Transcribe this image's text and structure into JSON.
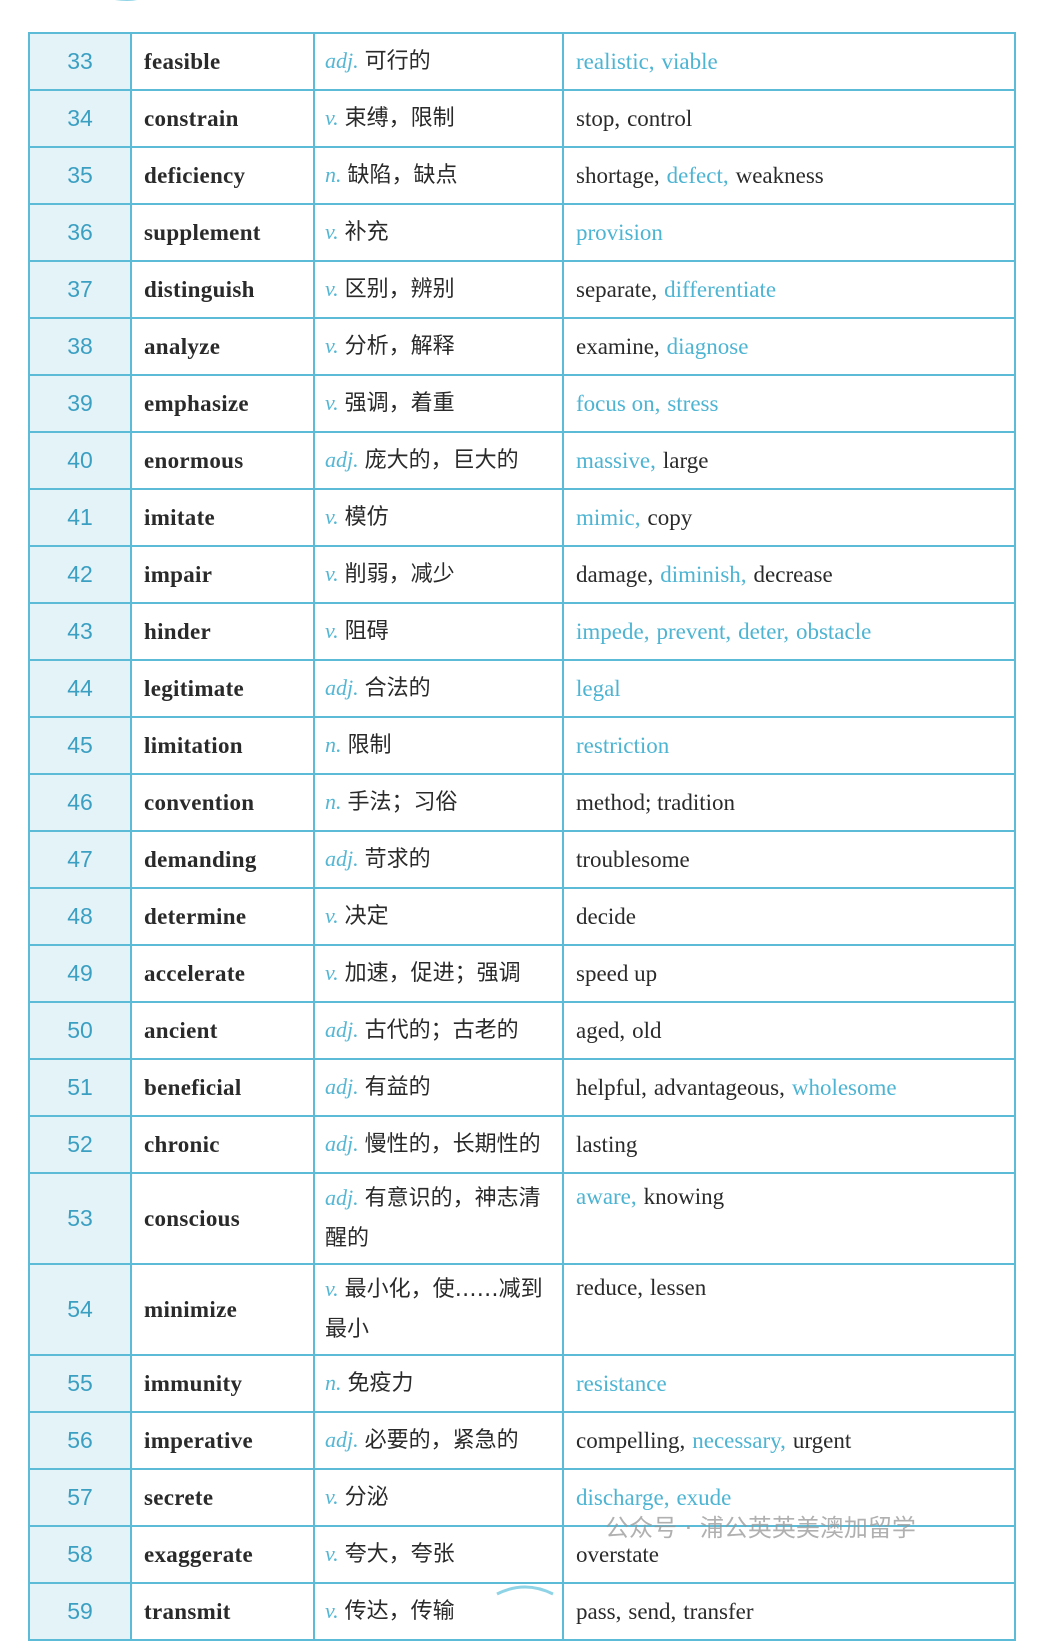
{
  "table": {
    "rows": [
      {
        "no": 33,
        "word": "feasible",
        "pos": "adj.",
        "meaning": "可行的",
        "synonyms": [
          {
            "text": "realistic,",
            "blue": true
          },
          {
            "text": "viable",
            "blue": true
          }
        ]
      },
      {
        "no": 34,
        "word": "constrain",
        "pos": "v.",
        "meaning": "束缚，限制",
        "synonyms": [
          {
            "text": "stop,",
            "blue": false
          },
          {
            "text": "control",
            "blue": false
          }
        ]
      },
      {
        "no": 35,
        "word": "deficiency",
        "pos": "n.",
        "meaning": "缺陷，缺点",
        "synonyms": [
          {
            "text": "shortage,",
            "blue": false
          },
          {
            "text": "defect,",
            "blue": true
          },
          {
            "text": "weakness",
            "blue": false
          }
        ]
      },
      {
        "no": 36,
        "word": "supplement",
        "pos": "v.",
        "meaning": "补充",
        "synonyms": [
          {
            "text": "provision",
            "blue": true
          }
        ]
      },
      {
        "no": 37,
        "word": "distinguish",
        "pos": "v.",
        "meaning": "区别，辨别",
        "synonyms": [
          {
            "text": "separate,",
            "blue": false
          },
          {
            "text": "differentiate",
            "blue": true
          }
        ]
      },
      {
        "no": 38,
        "word": "analyze",
        "pos": "v.",
        "meaning": "分析，解释",
        "synonyms": [
          {
            "text": "examine,",
            "blue": false
          },
          {
            "text": "diagnose",
            "blue": true
          }
        ]
      },
      {
        "no": 39,
        "word": "emphasize",
        "pos": "v.",
        "meaning": "强调，着重",
        "synonyms": [
          {
            "text": "focus on,",
            "blue": true
          },
          {
            "text": "stress",
            "blue": true
          }
        ]
      },
      {
        "no": 40,
        "word": "enormous",
        "pos": "adj.",
        "meaning": "庞大的，巨大的",
        "synonyms": [
          {
            "text": "massive,",
            "blue": true
          },
          {
            "text": "large",
            "blue": false
          }
        ]
      },
      {
        "no": 41,
        "word": "imitate",
        "pos": "v.",
        "meaning": "模仿",
        "synonyms": [
          {
            "text": "mimic,",
            "blue": true
          },
          {
            "text": "copy",
            "blue": false
          }
        ]
      },
      {
        "no": 42,
        "word": "impair",
        "pos": "v.",
        "meaning": "削弱，减少",
        "synonyms": [
          {
            "text": "damage,",
            "blue": false
          },
          {
            "text": "diminish,",
            "blue": true
          },
          {
            "text": "decrease",
            "blue": false
          }
        ]
      },
      {
        "no": 43,
        "word": "hinder",
        "pos": "v.",
        "meaning": "阻碍",
        "synonyms": [
          {
            "text": "impede,",
            "blue": true
          },
          {
            "text": "prevent,",
            "blue": true
          },
          {
            "text": "deter,",
            "blue": true
          },
          {
            "text": "obstacle",
            "blue": true
          }
        ]
      },
      {
        "no": 44,
        "word": "legitimate",
        "pos": "adj.",
        "meaning": "合法的",
        "synonyms": [
          {
            "text": "legal",
            "blue": true
          }
        ]
      },
      {
        "no": 45,
        "word": "limitation",
        "pos": "n.",
        "meaning": "限制",
        "synonyms": [
          {
            "text": "restriction",
            "blue": true
          }
        ]
      },
      {
        "no": 46,
        "word": "convention",
        "pos": "n.",
        "meaning": "手法；习俗",
        "synonyms": [
          {
            "text": "method; tradition",
            "blue": false
          }
        ]
      },
      {
        "no": 47,
        "word": "demanding",
        "pos": "adj.",
        "meaning": "苛求的",
        "synonyms": [
          {
            "text": "troublesome",
            "blue": false
          }
        ]
      },
      {
        "no": 48,
        "word": "determine",
        "pos": "v.",
        "meaning": "决定",
        "synonyms": [
          {
            "text": "decide",
            "blue": false
          }
        ]
      },
      {
        "no": 49,
        "word": "accelerate",
        "pos": "v.",
        "meaning": "加速，促进；强调",
        "synonyms": [
          {
            "text": "speed up",
            "blue": false
          }
        ]
      },
      {
        "no": 50,
        "word": "ancient",
        "pos": "adj.",
        "meaning": "古代的；古老的",
        "synonyms": [
          {
            "text": "aged,",
            "blue": false
          },
          {
            "text": "old",
            "blue": false
          }
        ]
      },
      {
        "no": 51,
        "word": "beneficial",
        "pos": "adj.",
        "meaning": "有益的",
        "synonyms": [
          {
            "text": "helpful,",
            "blue": false
          },
          {
            "text": "advantageous,",
            "blue": false
          },
          {
            "text": "wholesome",
            "blue": true
          }
        ]
      },
      {
        "no": 52,
        "word": "chronic",
        "pos": "adj.",
        "meaning": "慢性的，长期性的",
        "synonyms": [
          {
            "text": "lasting",
            "blue": false
          }
        ]
      },
      {
        "no": 53,
        "word": "conscious",
        "pos": "adj.",
        "meaning": "有意识的，神志清醒的",
        "synonyms": [
          {
            "text": "aware,",
            "blue": true
          },
          {
            "text": "knowing",
            "blue": false
          }
        ]
      },
      {
        "no": 54,
        "word": "minimize",
        "pos": "v.",
        "meaning": "最小化，使……减到最小",
        "synonyms": [
          {
            "text": "reduce,",
            "blue": false
          },
          {
            "text": "lessen",
            "blue": false
          }
        ]
      },
      {
        "no": 55,
        "word": "immunity",
        "pos": "n.",
        "meaning": "免疫力",
        "synonyms": [
          {
            "text": "resistance",
            "blue": true
          }
        ]
      },
      {
        "no": 56,
        "word": "imperative",
        "pos": "adj.",
        "meaning": "必要的，紧急的",
        "synonyms": [
          {
            "text": "compelling,",
            "blue": false
          },
          {
            "text": "necessary,",
            "blue": true
          },
          {
            "text": "urgent",
            "blue": false
          }
        ]
      },
      {
        "no": 57,
        "word": "secrete",
        "pos": "v.",
        "meaning": "分泌",
        "synonyms": [
          {
            "text": "discharge,",
            "blue": true
          },
          {
            "text": "exude",
            "blue": true
          }
        ]
      },
      {
        "no": 58,
        "word": "exaggerate",
        "pos": "v.",
        "meaning": "夸大，夸张",
        "synonyms": [
          {
            "text": "overstate",
            "blue": false
          }
        ]
      },
      {
        "no": 59,
        "word": "transmit",
        "pos": "v.",
        "meaning": "传达，传输",
        "synonyms": [
          {
            "text": "pass,",
            "blue": false
          },
          {
            "text": "send,",
            "blue": false
          },
          {
            "text": "transfer",
            "blue": false
          }
        ]
      }
    ]
  },
  "watermark": "公众号 · 浦公英英美澳加留学"
}
